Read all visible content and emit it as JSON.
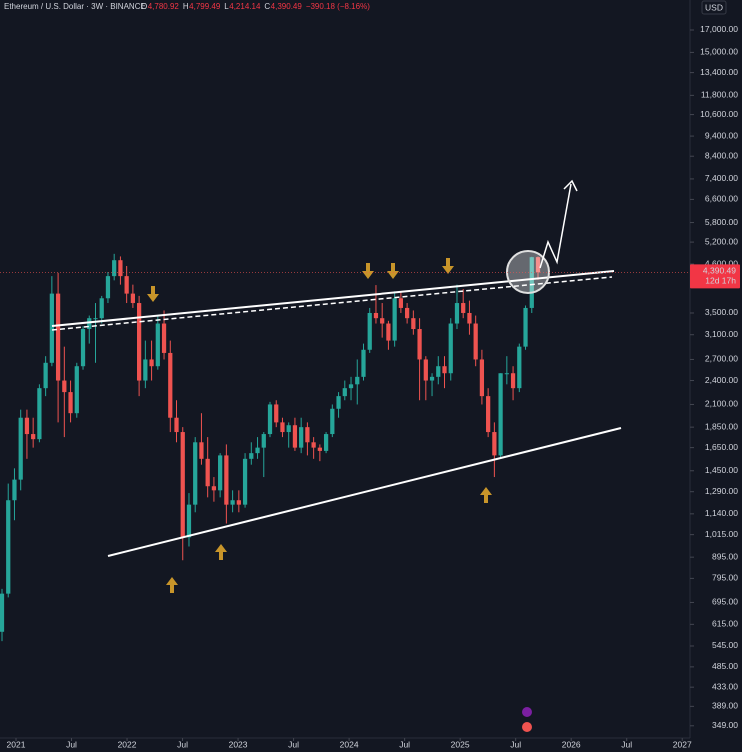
{
  "chart_data": {
    "type": "candlestick",
    "header": {
      "symbol": "Ethereum / U.S. Dollar · 3W · BINANCE",
      "items": [
        {
          "key": "O",
          "value": "4,780.92"
        },
        {
          "key": "H",
          "value": "4,799.49"
        },
        {
          "key": "L",
          "value": "4,214.14"
        },
        {
          "key": "C",
          "value": "4,390.49"
        }
      ],
      "change": "−390.18 (−8.16%)"
    },
    "currency": "USD",
    "last_price": {
      "value": 4390.49,
      "label": "4,390.49"
    },
    "countdown": "12d 17h",
    "up_color": "#26a69a",
    "down_color": "#ef5350",
    "log_scale": true,
    "grid": false,
    "open": [
      590,
      730,
      1230,
      1380,
      1950,
      1780,
      1730,
      2300,
      2650,
      3900,
      2400,
      2250,
      2000,
      2600,
      3200,
      3400,
      3400,
      3800,
      4300,
      4700,
      4300,
      3900,
      3700,
      2400,
      2700,
      2600,
      3300,
      2800,
      1950,
      1800,
      1000,
      1200,
      1700,
      1550,
      1330,
      1300,
      1580,
      1200,
      1230,
      1200,
      1550,
      1600,
      1650,
      1780,
      2100,
      1900,
      1800,
      1870,
      1650,
      1850,
      1700,
      1650,
      1620,
      1780,
      2050,
      2200,
      2300,
      2350,
      2450,
      2850,
      3500,
      3400,
      3300,
      3000,
      3800,
      3600,
      3400,
      3200,
      2700,
      2400,
      2450,
      2600,
      2500,
      3300,
      3700,
      3500,
      3300,
      2700,
      2200,
      1800,
      1580,
      2500,
      2500,
      2300,
      2900,
      3600,
      4780.92
    ],
    "high": [
      750,
      1350,
      1470,
      2040,
      2040,
      1950,
      2350,
      2750,
      4300,
      4380,
      2900,
      2400,
      2650,
      3250,
      3450,
      3700,
      3850,
      4400,
      4870,
      4800,
      4550,
      4100,
      3850,
      3000,
      3000,
      3450,
      3550,
      3000,
      2150,
      1850,
      1280,
      1750,
      2000,
      1750,
      1400,
      1600,
      1680,
      1300,
      1300,
      1600,
      1700,
      1750,
      1800,
      2130,
      2150,
      1950,
      1900,
      1950,
      1950,
      1900,
      1750,
      1680,
      1800,
      2100,
      2250,
      2400,
      2450,
      2700,
      2950,
      3600,
      4090,
      3700,
      3350,
      3950,
      3950,
      3700,
      3550,
      3400,
      2750,
      2500,
      2750,
      2750,
      3400,
      4100,
      4000,
      3750,
      3450,
      2850,
      2300,
      1900,
      2500,
      2750,
      2600,
      2950,
      3650,
      4790,
      4799.49
    ],
    "low": [
      560,
      715,
      1100,
      1300,
      1550,
      1650,
      1700,
      2200,
      2600,
      1900,
      1750,
      1900,
      1950,
      2550,
      2950,
      2650,
      3300,
      3700,
      4200,
      4100,
      3700,
      3600,
      2200,
      2300,
      2400,
      2550,
      2700,
      1800,
      1700,
      880,
      950,
      1150,
      1500,
      1250,
      1220,
      1250,
      1080,
      1150,
      1150,
      1180,
      1500,
      1550,
      1400,
      1750,
      1850,
      1750,
      1650,
      1620,
      1600,
      1580,
      1550,
      1530,
      1600,
      1750,
      1950,
      2150,
      2150,
      2100,
      2400,
      2800,
      3300,
      3050,
      2850,
      2900,
      3500,
      3300,
      3100,
      2150,
      2150,
      2200,
      2350,
      2300,
      2400,
      3200,
      3400,
      3100,
      2600,
      2100,
      1750,
      1400,
      1550,
      2350,
      2150,
      2250,
      2850,
      3500,
      4214.14
    ],
    "close": [
      730,
      1230,
      1380,
      1950,
      1780,
      1730,
      2300,
      2650,
      3900,
      2400,
      2250,
      2000,
      2600,
      3200,
      3400,
      3400,
      3800,
      4300,
      4700,
      4300,
      3900,
      3700,
      2400,
      2700,
      2600,
      3300,
      2800,
      1950,
      1800,
      1000,
      1200,
      1700,
      1550,
      1330,
      1300,
      1580,
      1200,
      1230,
      1200,
      1550,
      1600,
      1650,
      1780,
      2100,
      1900,
      1800,
      1870,
      1650,
      1850,
      1700,
      1650,
      1620,
      1780,
      2050,
      2200,
      2300,
      2350,
      2450,
      2850,
      3500,
      3400,
      3300,
      3000,
      3800,
      3600,
      3400,
      3200,
      2700,
      2400,
      2450,
      2600,
      2500,
      3300,
      3700,
      3500,
      3300,
      2700,
      2200,
      1800,
      1580,
      2500,
      2500,
      2300,
      2900,
      3600,
      4780,
      4390.49
    ],
    "ylim": [
      326,
      20100
    ],
    "yticks": [
      {
        "value": 17000,
        "label": "17,000.00"
      },
      {
        "value": 15000,
        "label": "15,000.00"
      },
      {
        "value": 13400,
        "label": "13,400.00"
      },
      {
        "value": 11800,
        "label": "11,800.00"
      },
      {
        "value": 10600,
        "label": "10,600.00"
      },
      {
        "value": 9400,
        "label": "9,400.00"
      },
      {
        "value": 8400,
        "label": "8,400.00"
      },
      {
        "value": 7400,
        "label": "7,400.00"
      },
      {
        "value": 6600,
        "label": "6,600.00"
      },
      {
        "value": 5800,
        "label": "5,800.00"
      },
      {
        "value": 5200,
        "label": "5,200.00"
      },
      {
        "value": 4600,
        "label": "4,600.00"
      },
      {
        "value": 3500,
        "label": "3,500.00"
      },
      {
        "value": 3100,
        "label": "3,100.00"
      },
      {
        "value": 2700,
        "label": "2,700.00"
      },
      {
        "value": 2400,
        "label": "2,400.00"
      },
      {
        "value": 2100,
        "label": "2,100.00"
      },
      {
        "value": 1850,
        "label": "1,850.00"
      },
      {
        "value": 1650,
        "label": "1,650.00"
      },
      {
        "value": 1450,
        "label": "1,450.00"
      },
      {
        "value": 1290,
        "label": "1,290.00"
      },
      {
        "value": 1140,
        "label": "1,140.00"
      },
      {
        "value": 1015,
        "label": "1,015.00"
      },
      {
        "value": 895,
        "label": "895.00"
      },
      {
        "value": 795,
        "label": "795.00"
      },
      {
        "value": 695,
        "label": "695.00"
      },
      {
        "value": 615,
        "label": "615.00"
      },
      {
        "value": 545,
        "label": "545.00"
      },
      {
        "value": 485,
        "label": "485.00"
      },
      {
        "value": 433,
        "label": "433.00"
      },
      {
        "value": 389,
        "label": "389.00"
      },
      {
        "value": 349,
        "label": "349.00"
      }
    ],
    "xlim": [
      2020.856,
      2027.07
    ],
    "xticks": [
      2021,
      {
        "value": 2021.5,
        "label": "Jul"
      },
      2022,
      {
        "value": 2022.5,
        "label": "Jul"
      },
      2023,
      {
        "value": 2023.5,
        "label": "Jul"
      },
      2024,
      {
        "value": 2024.5,
        "label": "Jul"
      },
      2025,
      {
        "value": 2025.5,
        "label": "Jul"
      },
      2026,
      {
        "value": 2026.5,
        "label": "Jul"
      },
      2027
    ]
  }
}
